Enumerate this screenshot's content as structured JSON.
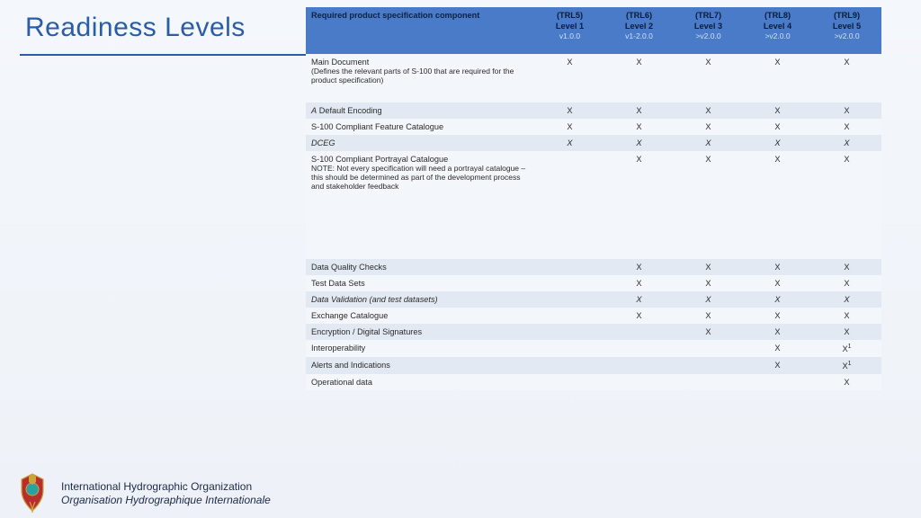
{
  "title": "Readiness Levels",
  "header": {
    "desc": "Required  product specification component",
    "cols": [
      {
        "trl": "(TRL5)",
        "level": "Level 1",
        "ver": "v1.0.0"
      },
      {
        "trl": "(TRL6)",
        "level": "Level 2",
        "ver": "v1-2.0.0"
      },
      {
        "trl": "(TRL7)",
        "level": "Level 3",
        "ver": ">v2.0.0"
      },
      {
        "trl": "(TRL8)",
        "level": "Level 4",
        "ver": ">v2.0.0"
      },
      {
        "trl": "(TRL9)",
        "level": "Level 5",
        "ver": ">v2.0.0"
      }
    ]
  },
  "rows": [
    {
      "shade": "light",
      "label": "Main Document",
      "note": "(Defines the relevant parts of S-100 that are required for the product specification)",
      "c": [
        "X",
        "X",
        "X",
        "X",
        "X"
      ],
      "tall": true
    },
    {
      "shade": "dark",
      "label_html": "<span class='italic'>A</span> Default Encoding",
      "c": [
        "X",
        "X",
        "X",
        "X",
        "X"
      ]
    },
    {
      "shade": "light",
      "label": "S-100 Compliant Feature Catalogue",
      "c": [
        "X",
        "X",
        "X",
        "X",
        "X"
      ]
    },
    {
      "shade": "dark",
      "label": "DCEG",
      "italic": true,
      "c": [
        "X",
        "X",
        "X",
        "X",
        "X"
      ]
    },
    {
      "shade": "light",
      "label": "S-100 Compliant Portrayal Catalogue",
      "note": "NOTE: Not every specification will need a portrayal catalogue – this should be determined as part of the development process and stakeholder feedback",
      "c": [
        "",
        "X",
        "X",
        "X",
        "X"
      ],
      "tall": true
    },
    {
      "shade": "light",
      "spacer": true
    },
    {
      "shade": "dark",
      "label": "Data Quality Checks",
      "c": [
        "",
        "X",
        "X",
        "X",
        "X"
      ]
    },
    {
      "shade": "light",
      "label": "Test Data Sets",
      "c": [
        "",
        "X",
        "X",
        "X",
        "X"
      ]
    },
    {
      "shade": "dark",
      "label": "Data Validation (and test datasets)",
      "italic": true,
      "c": [
        "",
        "X",
        "X",
        "X",
        "X"
      ]
    },
    {
      "shade": "light",
      "label": "Exchange Catalogue",
      "c": [
        "",
        "X",
        "X",
        "X",
        "X"
      ]
    },
    {
      "shade": "dark",
      "label": "Encryption / Digital Signatures",
      "c": [
        "",
        "",
        "X",
        "X",
        "X"
      ]
    },
    {
      "shade": "light",
      "label": "Interoperability",
      "c": [
        "",
        "",
        "",
        "X",
        "X"
      ],
      "sup": [
        false,
        false,
        false,
        false,
        true
      ]
    },
    {
      "shade": "dark",
      "label": "Alerts and Indications",
      "c": [
        "",
        "",
        "",
        "X",
        "X"
      ],
      "sup": [
        false,
        false,
        false,
        false,
        true
      ]
    },
    {
      "shade": "light",
      "label": "Operational data",
      "c": [
        "",
        "",
        "",
        "",
        "X"
      ]
    }
  ],
  "footer": {
    "org_en": "International Hydrographic Organization",
    "org_fr": "Organisation Hydrographique Internationale"
  },
  "colors": {
    "accent": "#2a5ca8",
    "header_bg": "#4a7bc8",
    "row_light": "#f3f6fb",
    "row_dark": "#e3e9f2",
    "page_bg": "#f4f7fb"
  }
}
